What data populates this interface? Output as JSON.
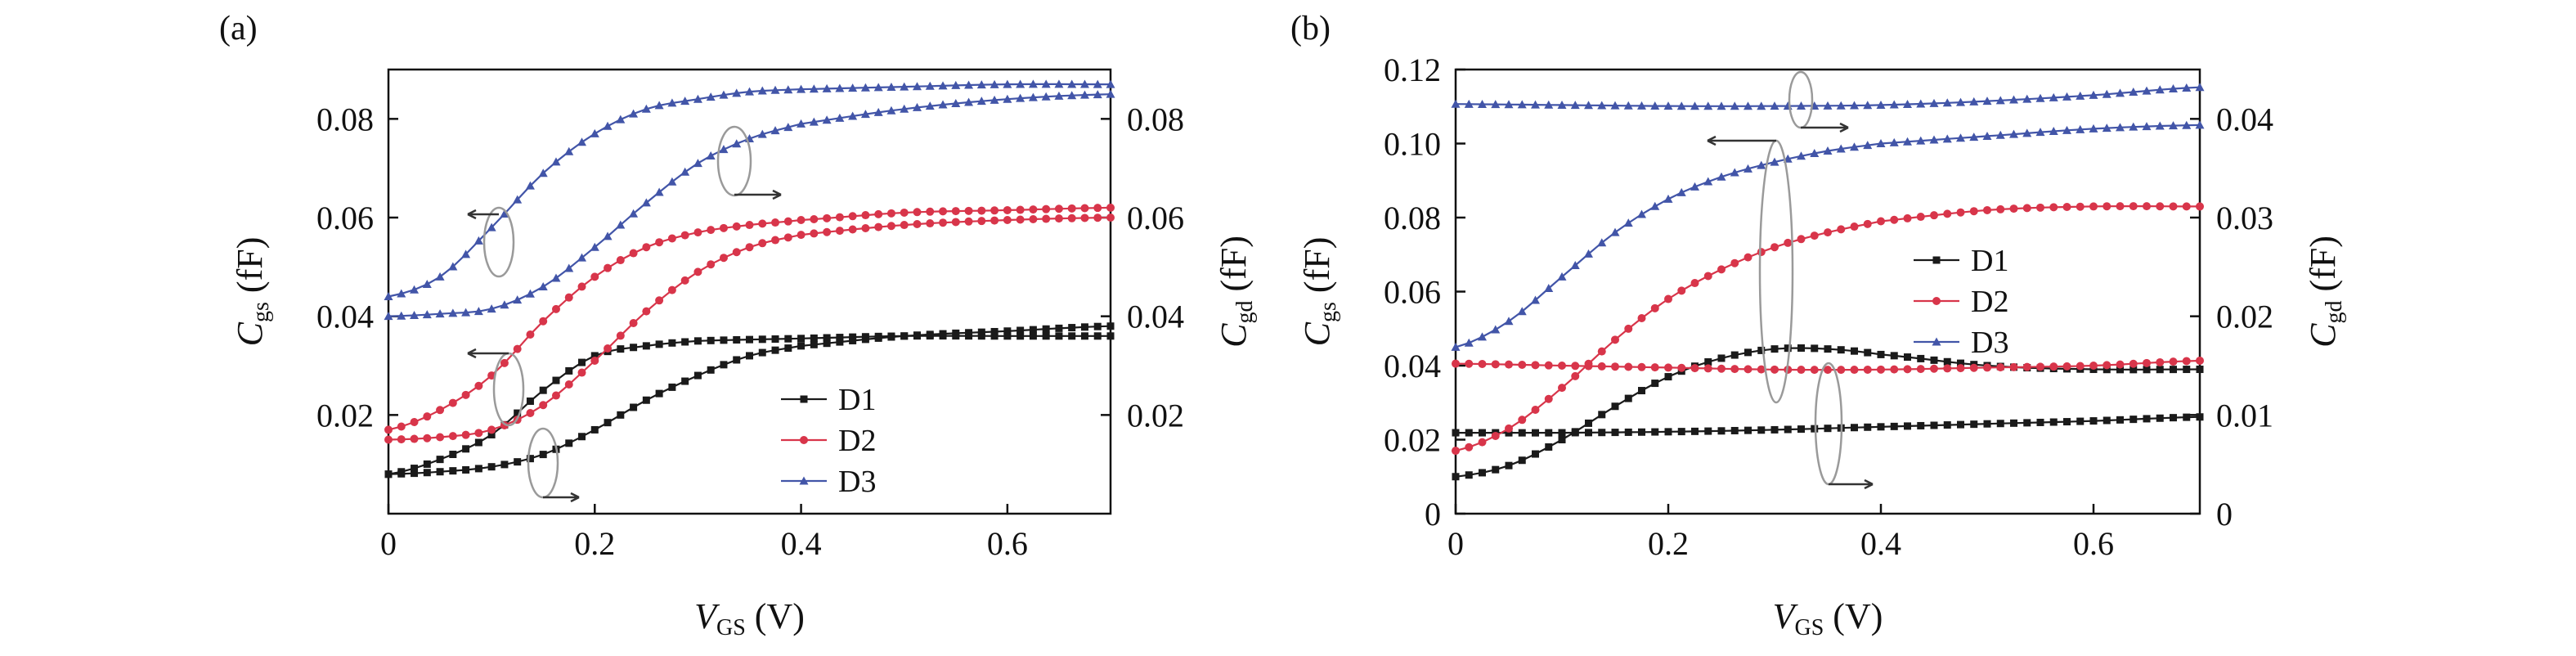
{
  "chart_data": [
    {
      "type": "line",
      "panel_label": "(a)",
      "xlabel": {
        "main": "V",
        "sub": "GS",
        "unit": " (V)"
      },
      "ylabel_left": {
        "main": "C",
        "sub": "gs",
        "unit": " (fF)"
      },
      "ylabel_right": {
        "main": "C",
        "sub": "gd",
        "unit": " (fF)"
      },
      "xlim": [
        0,
        0.7
      ],
      "ylim_left": [
        0.0,
        0.09
      ],
      "ylim_right": [
        0.0,
        0.09
      ],
      "xticks": [
        0,
        0.2,
        0.4,
        0.6
      ],
      "xtick_labels": [
        "0",
        "0.2",
        "0.4",
        "0.6"
      ],
      "yticks_left": [
        0.02,
        0.04,
        0.06,
        0.08
      ],
      "ytick_labels_left": [
        "0.02",
        "0.04",
        "0.06",
        "0.08"
      ],
      "yticks_right": [
        0.02,
        0.04,
        0.06,
        0.08
      ],
      "ytick_labels_right": [
        "0.02",
        "0.04",
        "0.06",
        "0.08"
      ],
      "legend": {
        "position": "lower-right",
        "entries": [
          "D1",
          "D2",
          "D3"
        ]
      },
      "series": [
        {
          "name": "D1",
          "color": "#1a1a1a",
          "marker": "square",
          "axis": "left",
          "x": [
            0,
            0.05,
            0.1,
            0.15,
            0.2,
            0.25,
            0.3,
            0.4,
            0.5,
            0.6,
            0.7
          ],
          "y": [
            0.008,
            0.011,
            0.016,
            0.025,
            0.032,
            0.034,
            0.035,
            0.0355,
            0.036,
            0.036,
            0.036
          ]
        },
        {
          "name": "D1",
          "color": "#1a1a1a",
          "marker": "square",
          "axis": "right",
          "x": [
            0,
            0.05,
            0.1,
            0.15,
            0.2,
            0.25,
            0.3,
            0.35,
            0.4,
            0.5,
            0.6,
            0.7
          ],
          "y": [
            0.008,
            0.0085,
            0.0095,
            0.012,
            0.017,
            0.023,
            0.028,
            0.032,
            0.034,
            0.036,
            0.037,
            0.038
          ]
        },
        {
          "name": "D2",
          "color": "#d8354a",
          "marker": "circle",
          "axis": "left",
          "x": [
            0,
            0.05,
            0.1,
            0.15,
            0.2,
            0.25,
            0.3,
            0.35,
            0.4,
            0.5,
            0.6,
            0.7
          ],
          "y": [
            0.017,
            0.021,
            0.028,
            0.039,
            0.048,
            0.054,
            0.057,
            0.0585,
            0.0595,
            0.061,
            0.0615,
            0.062
          ]
        },
        {
          "name": "D2",
          "color": "#d8354a",
          "marker": "circle",
          "axis": "right",
          "x": [
            0,
            0.05,
            0.1,
            0.15,
            0.2,
            0.25,
            0.3,
            0.35,
            0.4,
            0.5,
            0.6,
            0.7
          ],
          "y": [
            0.015,
            0.0155,
            0.017,
            0.022,
            0.031,
            0.041,
            0.049,
            0.054,
            0.0565,
            0.0585,
            0.0595,
            0.06
          ]
        },
        {
          "name": "D3",
          "color": "#4255a8",
          "marker": "triangle",
          "axis": "left",
          "x": [
            0,
            0.05,
            0.1,
            0.15,
            0.2,
            0.25,
            0.3,
            0.35,
            0.4,
            0.5,
            0.6,
            0.7
          ],
          "y": [
            0.044,
            0.048,
            0.058,
            0.069,
            0.077,
            0.082,
            0.084,
            0.0855,
            0.086,
            0.0865,
            0.087,
            0.087
          ]
        },
        {
          "name": "D3",
          "color": "#4255a8",
          "marker": "triangle",
          "axis": "right",
          "x": [
            0,
            0.05,
            0.1,
            0.15,
            0.2,
            0.25,
            0.3,
            0.35,
            0.4,
            0.5,
            0.6,
            0.7
          ],
          "y": [
            0.04,
            0.0405,
            0.0415,
            0.046,
            0.054,
            0.063,
            0.071,
            0.076,
            0.079,
            0.082,
            0.084,
            0.085
          ]
        }
      ]
    },
    {
      "type": "line",
      "panel_label": "(b)",
      "xlabel": {
        "main": "V",
        "sub": "GS",
        "unit": " (V)"
      },
      "ylabel_left": {
        "main": "C",
        "sub": "gs",
        "unit": " (fF)"
      },
      "ylabel_right": {
        "main": "C",
        "sub": "gd",
        "unit": " (fF)"
      },
      "xlim": [
        0,
        0.7
      ],
      "ylim_left": [
        0,
        0.12
      ],
      "ylim_right": [
        0,
        0.045
      ],
      "xticks": [
        0,
        0.2,
        0.4,
        0.6
      ],
      "xtick_labels": [
        "0",
        "0.2",
        "0.4",
        "0.6"
      ],
      "yticks_left": [
        0,
        0.02,
        0.04,
        0.06,
        0.08,
        0.1,
        0.12
      ],
      "ytick_labels_left": [
        "0",
        "0.02",
        "0.04",
        "0.06",
        "0.08",
        "0.10",
        "0.12"
      ],
      "yticks_right": [
        0,
        0.01,
        0.02,
        0.03,
        0.04
      ],
      "ytick_labels_right": [
        "0",
        "0.01",
        "0.02",
        "0.03",
        "0.04"
      ],
      "legend": {
        "position": "center-right",
        "entries": [
          "D1",
          "D2",
          "D3"
        ]
      },
      "series": [
        {
          "name": "D1",
          "color": "#1a1a1a",
          "marker": "square",
          "axis": "left",
          "x": [
            0,
            0.05,
            0.1,
            0.15,
            0.2,
            0.25,
            0.3,
            0.35,
            0.4,
            0.5,
            0.6,
            0.7
          ],
          "y": [
            0.01,
            0.013,
            0.02,
            0.029,
            0.037,
            0.042,
            0.0445,
            0.0445,
            0.043,
            0.04,
            0.039,
            0.039
          ]
        },
        {
          "name": "D1",
          "color": "#1a1a1a",
          "marker": "square",
          "axis": "right",
          "x": [
            0,
            0.1,
            0.2,
            0.3,
            0.4,
            0.5,
            0.6,
            0.7
          ],
          "y": [
            0.0082,
            0.0082,
            0.0083,
            0.0085,
            0.0088,
            0.0091,
            0.0094,
            0.0098
          ]
        },
        {
          "name": "D2",
          "color": "#d8354a",
          "marker": "circle",
          "axis": "left",
          "x": [
            0,
            0.05,
            0.1,
            0.15,
            0.2,
            0.25,
            0.3,
            0.35,
            0.4,
            0.5,
            0.6,
            0.7
          ],
          "y": [
            0.017,
            0.023,
            0.034,
            0.047,
            0.058,
            0.066,
            0.072,
            0.076,
            0.079,
            0.082,
            0.083,
            0.083
          ]
        },
        {
          "name": "D2",
          "color": "#d8354a",
          "marker": "circle",
          "axis": "right",
          "x": [
            0,
            0.1,
            0.2,
            0.3,
            0.4,
            0.5,
            0.6,
            0.7
          ],
          "y": [
            0.0152,
            0.015,
            0.0148,
            0.0146,
            0.0146,
            0.0148,
            0.015,
            0.0155
          ]
        },
        {
          "name": "D3",
          "color": "#4255a8",
          "marker": "triangle",
          "axis": "left",
          "x": [
            0,
            0.05,
            0.1,
            0.15,
            0.2,
            0.25,
            0.3,
            0.35,
            0.4,
            0.5,
            0.6,
            0.7
          ],
          "y": [
            0.045,
            0.052,
            0.064,
            0.076,
            0.085,
            0.091,
            0.095,
            0.098,
            0.1,
            0.102,
            0.104,
            0.105
          ]
        },
        {
          "name": "D3",
          "color": "#4255a8",
          "marker": "triangle",
          "axis": "right",
          "x": [
            0,
            0.1,
            0.2,
            0.3,
            0.4,
            0.5,
            0.6,
            0.7
          ],
          "y": [
            0.0415,
            0.0414,
            0.0413,
            0.0413,
            0.0414,
            0.0418,
            0.0424,
            0.0432
          ]
        }
      ]
    }
  ]
}
